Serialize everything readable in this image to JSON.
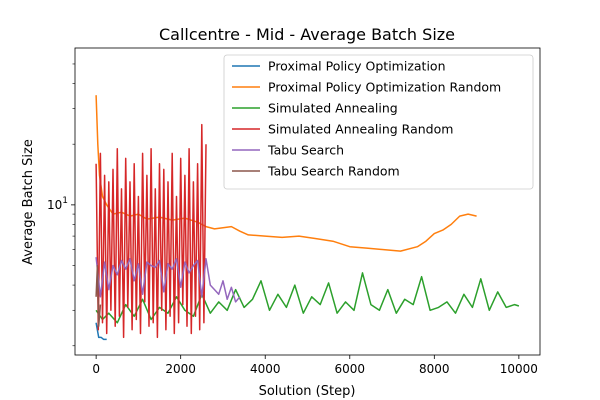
{
  "chart_data": {
    "type": "line",
    "title": "Callcentre - Mid - Average Batch Size",
    "xlabel": "Solution (Step)",
    "ylabel": "Average Batch Size",
    "xlim": [
      -500,
      10500
    ],
    "ylim": [
      1.8,
      60
    ],
    "yscale": "log",
    "x_ticks": [
      0,
      2000,
      4000,
      6000,
      8000,
      10000
    ],
    "x_tick_labels": [
      "0",
      "2000",
      "4000",
      "6000",
      "8000",
      "10000"
    ],
    "y_major_ticks": [
      10
    ],
    "y_major_tick_html": "10<tspan dy=\"-6\" font-size=\"9\">1</tspan>",
    "y_minor_ticks": [
      2,
      3,
      4,
      5,
      6,
      7,
      8,
      9,
      20,
      30,
      40,
      50
    ],
    "legend_position": "upper right",
    "grid": false,
    "series": [
      {
        "name": "Proximal Policy Optimization",
        "color": "#1f77b4",
        "x": [
          0,
          60,
          120,
          180,
          250
        ],
        "y": [
          2.6,
          2.2,
          2.2,
          2.15,
          2.15
        ]
      },
      {
        "name": "Proximal Policy Optimization Random",
        "color": "#ff7f0e",
        "x": [
          0,
          40,
          80,
          150,
          250,
          400,
          600,
          800,
          1000,
          1200,
          1500,
          1800,
          2100,
          2400,
          2600,
          2800,
          3000,
          3200,
          3400,
          3600,
          4000,
          4400,
          4800,
          5200,
          5600,
          6000,
          6400,
          6800,
          7200,
          7600,
          7800,
          8000,
          8200,
          8400,
          8600,
          8800,
          9000
        ],
        "y": [
          35,
          20,
          14,
          11,
          10,
          9,
          9.2,
          8.8,
          9,
          8.5,
          8.7,
          8.4,
          8.6,
          8.2,
          7.8,
          7.6,
          7.7,
          7.8,
          7.4,
          7.1,
          7.0,
          6.9,
          7.0,
          6.8,
          6.6,
          6.2,
          6.1,
          6.0,
          5.9,
          6.2,
          6.6,
          7.2,
          7.5,
          8.0,
          8.8,
          9.0,
          8.8
        ]
      },
      {
        "name": "Simulated Annealing",
        "color": "#2ca02c",
        "x": [
          0,
          150,
          300,
          500,
          700,
          900,
          1100,
          1300,
          1500,
          1700,
          1900,
          2100,
          2300,
          2500,
          2700,
          2900,
          3100,
          3300,
          3500,
          3700,
          3900,
          4100,
          4300,
          4500,
          4700,
          4900,
          5100,
          5300,
          5500,
          5700,
          5900,
          6100,
          6300,
          6500,
          6700,
          6900,
          7100,
          7300,
          7500,
          7700,
          7900,
          8100,
          8300,
          8500,
          8700,
          8900,
          9100,
          9300,
          9500,
          9700,
          9900,
          10000
        ],
        "y": [
          3.0,
          2.7,
          2.9,
          2.6,
          3.2,
          2.8,
          3.4,
          2.7,
          3.1,
          2.9,
          3.5,
          3.0,
          2.8,
          3.6,
          2.9,
          3.3,
          3.0,
          3.8,
          3.1,
          3.4,
          4.2,
          3.0,
          3.6,
          3.1,
          4.0,
          2.9,
          3.5,
          3.2,
          4.1,
          2.9,
          3.3,
          3.0,
          4.6,
          3.2,
          3.0,
          3.8,
          2.9,
          3.4,
          3.2,
          4.4,
          3.0,
          3.1,
          3.3,
          2.9,
          3.6,
          3.1,
          4.3,
          3.0,
          3.7,
          3.1,
          3.2,
          3.15
        ]
      },
      {
        "name": "Simulated Annealing Random",
        "color": "#d62728",
        "x": [
          0,
          50,
          100,
          150,
          200,
          250,
          300,
          350,
          400,
          450,
          500,
          550,
          600,
          650,
          700,
          750,
          800,
          850,
          900,
          950,
          1000,
          1050,
          1100,
          1150,
          1200,
          1250,
          1300,
          1350,
          1400,
          1450,
          1500,
          1550,
          1600,
          1650,
          1700,
          1750,
          1800,
          1850,
          1900,
          1950,
          2000,
          2050,
          2100,
          2150,
          2200,
          2250,
          2300,
          2350,
          2400,
          2450,
          2500,
          2550,
          2600
        ],
        "y": [
          16,
          2.4,
          18,
          2.6,
          14,
          2.3,
          13,
          3.0,
          15,
          2.5,
          19,
          2.8,
          12,
          2.2,
          17,
          3.1,
          13,
          2.4,
          16,
          2.7,
          11,
          2.3,
          18,
          3.3,
          14,
          2.5,
          19,
          2.6,
          12,
          2.2,
          16,
          3.0,
          15,
          2.4,
          13,
          2.8,
          18,
          2.3,
          11,
          2.6,
          17,
          3.2,
          14,
          2.5,
          19,
          2.3,
          13,
          2.8,
          16,
          2.4,
          25,
          2.6,
          20
        ]
      },
      {
        "name": "Tabu Search",
        "color": "#9467bd",
        "x": [
          0,
          100,
          200,
          300,
          400,
          500,
          600,
          700,
          800,
          900,
          1000,
          1100,
          1200,
          1300,
          1400,
          1500,
          1600,
          1700,
          1800,
          1900,
          2000,
          2100,
          2200,
          2300,
          2400,
          2500,
          2600,
          2700,
          2800,
          2900,
          3000,
          3100,
          3200,
          3300,
          3400
        ],
        "y": [
          5.5,
          3.5,
          5.2,
          3.8,
          5.0,
          4.5,
          5.3,
          4.8,
          5.4,
          4.2,
          5.1,
          3.6,
          5.2,
          5.0,
          4.9,
          5.3,
          3.7,
          5.1,
          4.8,
          5.4,
          3.9,
          5.2,
          4.6,
          5.0,
          5.3,
          3.5,
          5.4,
          4.0,
          3.8,
          3.6,
          4.2,
          3.4,
          3.9,
          3.3,
          3.5
        ]
      },
      {
        "name": "Tabu Search Random",
        "color": "#8c564b",
        "x": [
          0,
          30,
          60,
          100
        ],
        "y": [
          3.5,
          5.0,
          2.5,
          3.2
        ]
      }
    ]
  }
}
